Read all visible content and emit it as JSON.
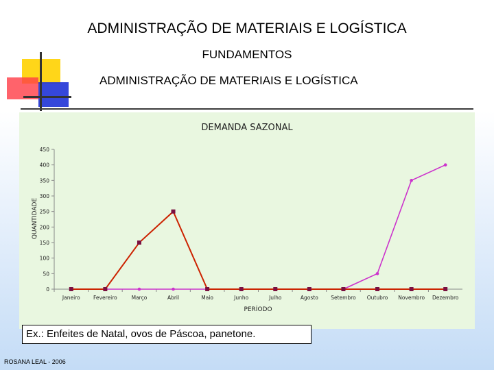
{
  "slide": {
    "title": "ADMINISTRAÇÃO DE MATERIAIS E LOGÍSTICA",
    "subtitle": "FUNDAMENTOS",
    "heading": "ADMINISTRAÇÃO DE MATERIAIS E LOGÍSTICA",
    "example": "Ex.: Enfeites de Natal, ovos de Páscoa, panetone.",
    "footer": "ROSANA LEAL - 2006"
  },
  "colors": {
    "chart_bg": "#e9f7e0",
    "series_1": "#cc2200",
    "series_1_marker": "#7a1040",
    "series_2": "#cc33cc"
  },
  "chart_data": {
    "type": "line",
    "title": "DEMANDA SAZONAL",
    "xlabel": "PERÍODO",
    "ylabel": "QUANTIDADE",
    "categories": [
      "Janeiro",
      "Fevereiro",
      "Março",
      "Abril",
      "Maio",
      "Junho",
      "Julho",
      "Agosto",
      "Setembro",
      "Outubro",
      "Novembro",
      "Dezembro"
    ],
    "ylim": [
      0,
      450
    ],
    "yticks": [
      0,
      50,
      100,
      150,
      200,
      250,
      300,
      350,
      400,
      450
    ],
    "grid": false,
    "legend": "none",
    "series": [
      {
        "values": [
          0,
          0,
          150,
          250,
          0,
          0,
          0,
          0,
          0,
          0,
          0,
          0
        ]
      },
      {
        "values": [
          0,
          0,
          0,
          0,
          0,
          0,
          0,
          0,
          0,
          50,
          350,
          400
        ]
      }
    ]
  }
}
